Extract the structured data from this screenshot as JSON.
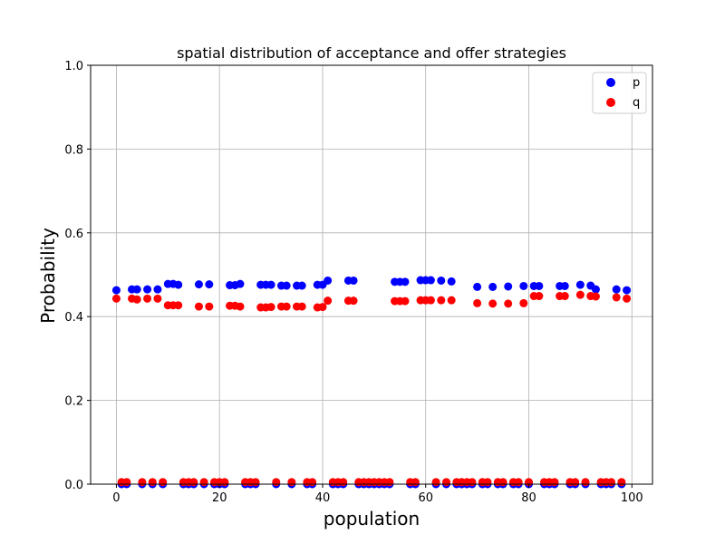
{
  "chart_data": {
    "type": "scatter",
    "title": "spatial distribution of acceptance and offer strategies",
    "xlabel": "population",
    "ylabel": "Probability",
    "xlim": [
      -5,
      104
    ],
    "ylim": [
      0,
      1
    ],
    "xticks": [
      0,
      20,
      40,
      60,
      80,
      100
    ],
    "yticks": [
      0.0,
      0.2,
      0.4,
      0.6,
      0.8,
      1.0
    ],
    "ytick_labels": [
      "0.0",
      "0.2",
      "0.4",
      "0.6",
      "0.8",
      "1.0"
    ],
    "grid": true,
    "legend_position": "top-right",
    "series": [
      {
        "name": "p",
        "color": "#0000ff",
        "x": [
          0,
          1,
          2,
          3,
          4,
          5,
          6,
          7,
          8,
          9,
          10,
          11,
          12,
          13,
          14,
          15,
          16,
          17,
          18,
          19,
          20,
          21,
          22,
          23,
          24,
          25,
          26,
          27,
          28,
          29,
          30,
          31,
          32,
          33,
          34,
          35,
          36,
          37,
          38,
          39,
          40,
          41,
          42,
          43,
          44,
          45,
          46,
          47,
          48,
          49,
          50,
          51,
          52,
          53,
          54,
          55,
          56,
          57,
          58,
          59,
          60,
          61,
          62,
          63,
          64,
          65,
          66,
          67,
          68,
          69,
          70,
          71,
          72,
          73,
          74,
          75,
          76,
          77,
          78,
          79,
          80,
          81,
          82,
          83,
          84,
          85,
          86,
          87,
          88,
          89,
          90,
          91,
          92,
          93,
          94,
          95,
          96,
          97,
          98,
          99
        ],
        "y": [
          0.463,
          0,
          0,
          0.465,
          0.465,
          0,
          0.465,
          0,
          0.465,
          0,
          0.478,
          0.478,
          0.476,
          0,
          0,
          0,
          0.477,
          0,
          0.477,
          0,
          0,
          0,
          0.475,
          0.475,
          0.478,
          0,
          0,
          0,
          0.476,
          0.476,
          0.476,
          0,
          0.474,
          0.474,
          0,
          0.474,
          0.474,
          0,
          0,
          0.476,
          0.476,
          0.486,
          0,
          0,
          0,
          0.486,
          0.486,
          0,
          0,
          0,
          0,
          0,
          0,
          0,
          0.483,
          0.483,
          0.483,
          0,
          0,
          0.487,
          0.487,
          0.487,
          0,
          0.486,
          0,
          0.484,
          0,
          0,
          0,
          0,
          0.471,
          0,
          0,
          0.471,
          0,
          0,
          0.472,
          0,
          0,
          0.473,
          0,
          0.473,
          0.473,
          0,
          0,
          0,
          0.473,
          0.473,
          0,
          0,
          0.476,
          0,
          0.474,
          0.465,
          0,
          0,
          0,
          0.465,
          0,
          0.463
        ]
      },
      {
        "name": "q",
        "color": "#ff0000",
        "x": [
          0,
          1,
          2,
          3,
          4,
          5,
          6,
          7,
          8,
          9,
          10,
          11,
          12,
          13,
          14,
          15,
          16,
          17,
          18,
          19,
          20,
          21,
          22,
          23,
          24,
          25,
          26,
          27,
          28,
          29,
          30,
          31,
          32,
          33,
          34,
          35,
          36,
          37,
          38,
          39,
          40,
          41,
          42,
          43,
          44,
          45,
          46,
          47,
          48,
          49,
          50,
          51,
          52,
          53,
          54,
          55,
          56,
          57,
          58,
          59,
          60,
          61,
          62,
          63,
          64,
          65,
          66,
          67,
          68,
          69,
          70,
          71,
          72,
          73,
          74,
          75,
          76,
          77,
          78,
          79,
          80,
          81,
          82,
          83,
          84,
          85,
          86,
          87,
          88,
          89,
          90,
          91,
          92,
          93,
          94,
          95,
          96,
          97,
          98,
          99
        ],
        "y": [
          0.443,
          0.005,
          0.005,
          0.443,
          0.441,
          0.005,
          0.443,
          0.005,
          0.443,
          0.005,
          0.427,
          0.427,
          0.427,
          0.005,
          0.005,
          0.005,
          0.424,
          0.005,
          0.424,
          0.005,
          0.005,
          0.005,
          0.426,
          0.426,
          0.424,
          0.005,
          0.005,
          0.005,
          0.422,
          0.422,
          0.423,
          0.005,
          0.424,
          0.424,
          0.005,
          0.424,
          0.424,
          0.005,
          0.005,
          0.422,
          0.423,
          0.438,
          0.005,
          0.005,
          0.005,
          0.438,
          0.438,
          0.005,
          0.005,
          0.005,
          0.005,
          0.005,
          0.005,
          0.005,
          0.437,
          0.437,
          0.437,
          0.005,
          0.005,
          0.439,
          0.439,
          0.439,
          0.005,
          0.439,
          0.005,
          0.439,
          0.005,
          0.005,
          0.005,
          0.005,
          0.432,
          0.005,
          0.005,
          0.431,
          0.005,
          0.005,
          0.431,
          0.005,
          0.005,
          0.432,
          0.005,
          0.449,
          0.449,
          0.005,
          0.005,
          0.005,
          0.449,
          0.449,
          0.005,
          0.005,
          0.452,
          0.005,
          0.449,
          0.448,
          0.005,
          0.005,
          0.005,
          0.446,
          0.005,
          0.443
        ]
      }
    ]
  }
}
